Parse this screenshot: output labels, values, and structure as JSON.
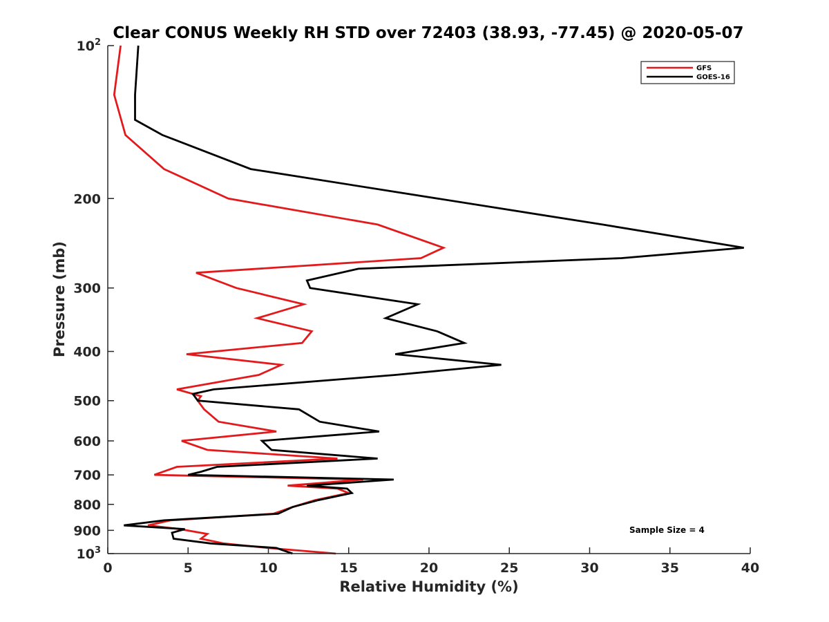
{
  "chart_data": {
    "type": "line",
    "title": "Clear CONUS Weekly RH STD over 72403 (38.93, -77.45) @ 2020-05-07",
    "xlabel": "Relative Humidity (%)",
    "ylabel": "Pressure (mb)",
    "xlim": [
      0,
      40
    ],
    "ylim": [
      100,
      1000
    ],
    "y_scale": "log",
    "y_reversed": true,
    "grid": false,
    "legend_position": "top-right",
    "x_ticks": [
      0,
      5,
      10,
      15,
      20,
      25,
      30,
      35,
      40
    ],
    "y_ticks": [
      {
        "value": 100,
        "base": "10",
        "exp": "2"
      },
      {
        "value": 200,
        "label": "200"
      },
      {
        "value": 300,
        "label": "300"
      },
      {
        "value": 400,
        "label": "400"
      },
      {
        "value": 500,
        "label": "500"
      },
      {
        "value": 600,
        "label": "600"
      },
      {
        "value": 700,
        "label": "700"
      },
      {
        "value": 800,
        "label": "800"
      },
      {
        "value": 900,
        "label": "900"
      },
      {
        "value": 1000,
        "base": "10",
        "exp": "3"
      }
    ],
    "series": [
      {
        "name": "GFS",
        "color": "#e31a1c",
        "points": [
          [
            0.8,
            100
          ],
          [
            0.4,
            125
          ],
          [
            1.1,
            150
          ],
          [
            3.5,
            175
          ],
          [
            7.5,
            200
          ],
          [
            16.8,
            225
          ],
          [
            20.9,
            250
          ],
          [
            19.5,
            262
          ],
          [
            5.5,
            280
          ],
          [
            8.0,
            300
          ],
          [
            12.2,
            323
          ],
          [
            9.3,
            344
          ],
          [
            12.7,
            365
          ],
          [
            12.1,
            385
          ],
          [
            4.9,
            405
          ],
          [
            10.8,
            425
          ],
          [
            9.4,
            445
          ],
          [
            4.3,
            475
          ],
          [
            5.8,
            490
          ],
          [
            5.6,
            500
          ],
          [
            6.0,
            520
          ],
          [
            6.9,
            550
          ],
          [
            10.5,
            575
          ],
          [
            4.6,
            600
          ],
          [
            6.2,
            625
          ],
          [
            14.3,
            650
          ],
          [
            4.3,
            675
          ],
          [
            2.9,
            700
          ],
          [
            15.9,
            715
          ],
          [
            11.2,
            735
          ],
          [
            14.3,
            745
          ],
          [
            15.0,
            760
          ],
          [
            12.9,
            785
          ],
          [
            11.5,
            810
          ],
          [
            10.3,
            835
          ],
          [
            3.9,
            860
          ],
          [
            2.5,
            880
          ],
          [
            4.5,
            895
          ],
          [
            6.2,
            915
          ],
          [
            5.8,
            935
          ],
          [
            7.2,
            955
          ],
          [
            10.0,
            975
          ],
          [
            14.2,
            1000
          ]
        ]
      },
      {
        "name": "GOES-16",
        "color": "#000000",
        "points": [
          [
            1.9,
            100
          ],
          [
            1.7,
            125
          ],
          [
            1.7,
            140
          ],
          [
            3.4,
            150
          ],
          [
            8.9,
            175
          ],
          [
            30.8,
            225
          ],
          [
            39.6,
            250
          ],
          [
            32.0,
            262
          ],
          [
            15.6,
            275
          ],
          [
            12.4,
            290
          ],
          [
            12.6,
            300
          ],
          [
            19.3,
            323
          ],
          [
            17.3,
            344
          ],
          [
            20.5,
            365
          ],
          [
            22.2,
            385
          ],
          [
            17.9,
            405
          ],
          [
            24.5,
            425
          ],
          [
            17.9,
            445
          ],
          [
            6.6,
            475
          ],
          [
            5.3,
            485
          ],
          [
            5.6,
            500
          ],
          [
            11.9,
            520
          ],
          [
            13.2,
            550
          ],
          [
            16.9,
            575
          ],
          [
            9.6,
            600
          ],
          [
            10.2,
            625
          ],
          [
            16.8,
            650
          ],
          [
            6.8,
            675
          ],
          [
            5.8,
            690
          ],
          [
            5.0,
            700
          ],
          [
            17.8,
            715
          ],
          [
            12.4,
            735
          ],
          [
            14.9,
            745
          ],
          [
            15.2,
            760
          ],
          [
            13.1,
            785
          ],
          [
            11.5,
            810
          ],
          [
            10.6,
            835
          ],
          [
            3.5,
            860
          ],
          [
            1.0,
            880
          ],
          [
            4.8,
            895
          ],
          [
            4.0,
            910
          ],
          [
            4.1,
            935
          ],
          [
            6.4,
            955
          ],
          [
            10.5,
            975
          ],
          [
            11.5,
            1000
          ]
        ]
      }
    ],
    "annotation": "Sample Size = 4"
  }
}
